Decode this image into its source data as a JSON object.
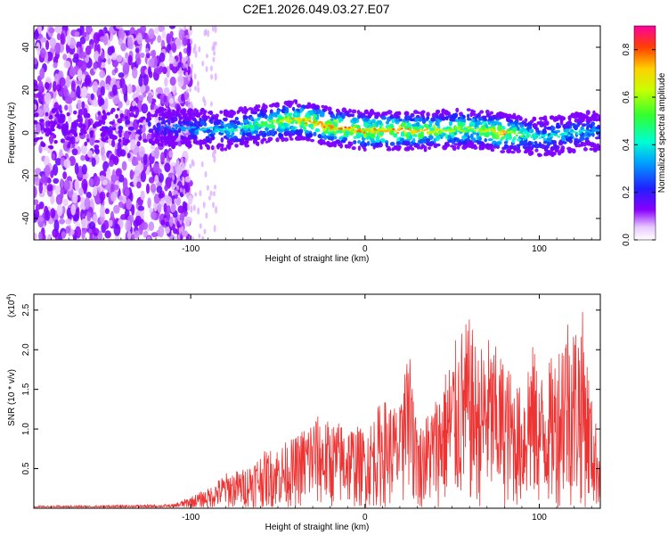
{
  "title": "C2E1.2026.049.03.27.E07",
  "chart_data": [
    {
      "type": "heatmap",
      "xlabel": "Height of straight line (km)",
      "ylabel": "Frequency (Hz)",
      "xlim": [
        -190,
        135
      ],
      "ylim": [
        -50,
        50
      ],
      "xticks": [
        -100,
        0,
        100
      ],
      "xtick_labels": [
        "-100",
        "0",
        "100"
      ],
      "yticks": [
        -40,
        -20,
        0,
        20,
        40
      ],
      "ytick_labels": [
        "-40",
        "-20",
        "0",
        "20",
        "40"
      ],
      "colorbar": {
        "label": "Normalized spectral amplitude",
        "range": [
          0,
          0.9
        ],
        "ticks": [
          0.0,
          0.2,
          0.4,
          0.6,
          0.8
        ],
        "tick_labels": [
          "0.0",
          "0.2",
          "0.4",
          "0.6",
          "0.8"
        ]
      },
      "description_series": {
        "centerline_x": [
          -190,
          -150,
          -120,
          -100,
          -80,
          -60,
          -40,
          -30,
          -20,
          0,
          20,
          40,
          60,
          80,
          90,
          100,
          120,
          135
        ],
        "centerline_freq": [
          2,
          2,
          3,
          2,
          1,
          4,
          6,
          5,
          3,
          1,
          1,
          1,
          2,
          0,
          -1,
          -2,
          0,
          1
        ],
        "peak_amplitude": [
          0.1,
          0.2,
          0.3,
          0.4,
          0.5,
          0.6,
          0.85,
          0.85,
          0.9,
          0.9,
          0.9,
          0.8,
          0.7,
          0.9,
          0.6,
          0.5,
          0.5,
          0.4
        ]
      }
    },
    {
      "type": "line",
      "xlabel": "Height of straight line (km)",
      "ylabel": "SNR (10 * v/v)",
      "y_multiplier": "(x10",
      "y_multiplier_exp": "4",
      "y_multiplier_close": ")",
      "xlim": [
        -190,
        135
      ],
      "ylim": [
        0,
        27000
      ],
      "xticks": [
        -100,
        0,
        100
      ],
      "xtick_labels": [
        "-100",
        "0",
        "100"
      ],
      "yticks": [
        5000,
        10000,
        15000,
        20000,
        25000
      ],
      "ytick_labels": [
        "0.5",
        "1.0",
        "1.5",
        "2.0",
        "2.5"
      ],
      "color": "#ee3333",
      "envelope_x": [
        -190,
        -140,
        -110,
        -100,
        -90,
        -80,
        -70,
        -60,
        -50,
        -40,
        -30,
        -20,
        -10,
        0,
        10,
        20,
        25,
        30,
        40,
        50,
        55,
        60,
        65,
        70,
        80,
        90,
        95,
        100,
        110,
        115,
        120,
        125,
        130,
        135
      ],
      "envelope_y": [
        300,
        400,
        500,
        1500,
        2500,
        4500,
        5000,
        7000,
        8000,
        9000,
        12000,
        11000,
        11000,
        10000,
        14000,
        13000,
        21000,
        10000,
        14000,
        20000,
        23000,
        24000,
        20000,
        22000,
        19000,
        15000,
        22000,
        17000,
        20000,
        26000,
        24000,
        25000,
        14000,
        8000
      ]
    }
  ]
}
